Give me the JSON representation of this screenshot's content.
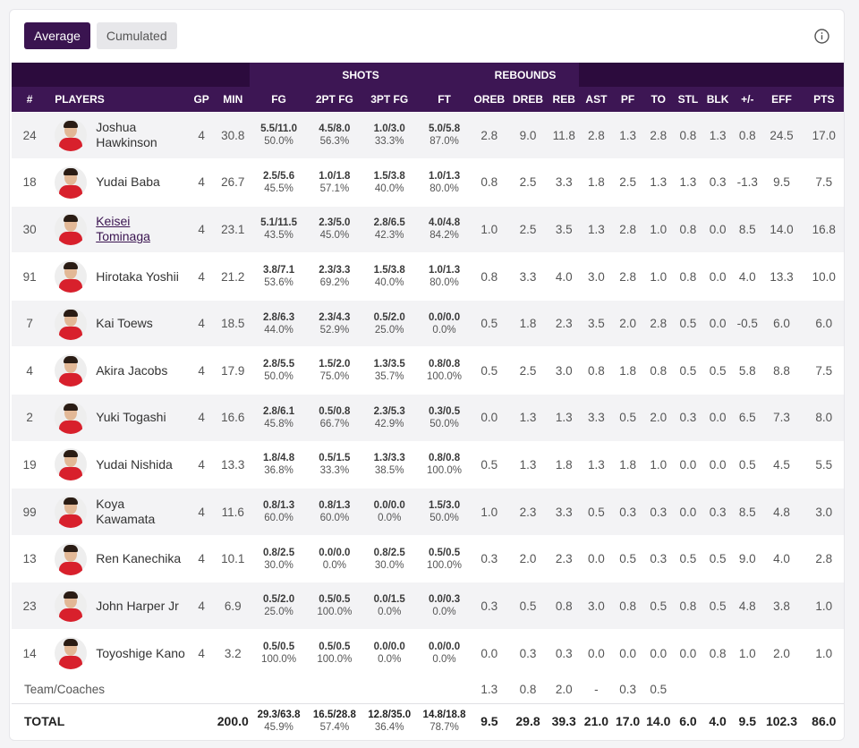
{
  "tabs": [
    {
      "label": "Average",
      "active": true
    },
    {
      "label": "Cumulated",
      "active": false
    }
  ],
  "info_icon": "info-circle-icon",
  "colors": {
    "header_dark": "#2c0b3d",
    "header": "#3d1654",
    "accent": "#3a1450",
    "jersey": "#d8202c"
  },
  "table": {
    "groups": {
      "shots": "SHOTS",
      "rebounds": "REBOUNDS"
    },
    "columns": [
      "#",
      "PLAYERS",
      "GP",
      "MIN",
      "FG",
      "2PT FG",
      "3PT FG",
      "FT",
      "OREB",
      "DREB",
      "REB",
      "AST",
      "PF",
      "TO",
      "STL",
      "BLK",
      "+/-",
      "EFF",
      "PTS"
    ],
    "players": [
      {
        "no": "24",
        "name": "Joshua Hawkinson",
        "gp": "4",
        "min": "30.8",
        "fg": [
          "5.5/11.0",
          "50.0%"
        ],
        "fg2": [
          "4.5/8.0",
          "56.3%"
        ],
        "fg3": [
          "1.0/3.0",
          "33.3%"
        ],
        "ft": [
          "5.0/5.8",
          "87.0%"
        ],
        "oreb": "2.8",
        "dreb": "9.0",
        "reb": "11.8",
        "ast": "2.8",
        "pf": "1.3",
        "to": "2.8",
        "stl": "0.8",
        "blk": "1.3",
        "pm": "0.8",
        "eff": "24.5",
        "pts": "17.0"
      },
      {
        "no": "18",
        "name": "Yudai Baba",
        "gp": "4",
        "min": "26.7",
        "fg": [
          "2.5/5.6",
          "45.5%"
        ],
        "fg2": [
          "1.0/1.8",
          "57.1%"
        ],
        "fg3": [
          "1.5/3.8",
          "40.0%"
        ],
        "ft": [
          "1.0/1.3",
          "80.0%"
        ],
        "oreb": "0.8",
        "dreb": "2.5",
        "reb": "3.3",
        "ast": "1.8",
        "pf": "2.5",
        "to": "1.3",
        "stl": "1.3",
        "blk": "0.3",
        "pm": "-1.3",
        "eff": "9.5",
        "pts": "7.5"
      },
      {
        "no": "30",
        "name": "Keisei Tominaga",
        "link": true,
        "gp": "4",
        "min": "23.1",
        "fg": [
          "5.1/11.5",
          "43.5%"
        ],
        "fg2": [
          "2.3/5.0",
          "45.0%"
        ],
        "fg3": [
          "2.8/6.5",
          "42.3%"
        ],
        "ft": [
          "4.0/4.8",
          "84.2%"
        ],
        "oreb": "1.0",
        "dreb": "2.5",
        "reb": "3.5",
        "ast": "1.3",
        "pf": "2.8",
        "to": "1.0",
        "stl": "0.8",
        "blk": "0.0",
        "pm": "8.5",
        "eff": "14.0",
        "pts": "16.8"
      },
      {
        "no": "91",
        "name": "Hirotaka Yoshii",
        "gp": "4",
        "min": "21.2",
        "fg": [
          "3.8/7.1",
          "53.6%"
        ],
        "fg2": [
          "2.3/3.3",
          "69.2%"
        ],
        "fg3": [
          "1.5/3.8",
          "40.0%"
        ],
        "ft": [
          "1.0/1.3",
          "80.0%"
        ],
        "oreb": "0.8",
        "dreb": "3.3",
        "reb": "4.0",
        "ast": "3.0",
        "pf": "2.8",
        "to": "1.0",
        "stl": "0.8",
        "blk": "0.0",
        "pm": "4.0",
        "eff": "13.3",
        "pts": "10.0"
      },
      {
        "no": "7",
        "name": "Kai Toews",
        "gp": "4",
        "min": "18.5",
        "fg": [
          "2.8/6.3",
          "44.0%"
        ],
        "fg2": [
          "2.3/4.3",
          "52.9%"
        ],
        "fg3": [
          "0.5/2.0",
          "25.0%"
        ],
        "ft": [
          "0.0/0.0",
          "0.0%"
        ],
        "oreb": "0.5",
        "dreb": "1.8",
        "reb": "2.3",
        "ast": "3.5",
        "pf": "2.0",
        "to": "2.8",
        "stl": "0.5",
        "blk": "0.0",
        "pm": "-0.5",
        "eff": "6.0",
        "pts": "6.0"
      },
      {
        "no": "4",
        "name": "Akira Jacobs",
        "gp": "4",
        "min": "17.9",
        "fg": [
          "2.8/5.5",
          "50.0%"
        ],
        "fg2": [
          "1.5/2.0",
          "75.0%"
        ],
        "fg3": [
          "1.3/3.5",
          "35.7%"
        ],
        "ft": [
          "0.8/0.8",
          "100.0%"
        ],
        "oreb": "0.5",
        "dreb": "2.5",
        "reb": "3.0",
        "ast": "0.8",
        "pf": "1.8",
        "to": "0.8",
        "stl": "0.5",
        "blk": "0.5",
        "pm": "5.8",
        "eff": "8.8",
        "pts": "7.5"
      },
      {
        "no": "2",
        "name": "Yuki Togashi",
        "gp": "4",
        "min": "16.6",
        "fg": [
          "2.8/6.1",
          "45.8%"
        ],
        "fg2": [
          "0.5/0.8",
          "66.7%"
        ],
        "fg3": [
          "2.3/5.3",
          "42.9%"
        ],
        "ft": [
          "0.3/0.5",
          "50.0%"
        ],
        "oreb": "0.0",
        "dreb": "1.3",
        "reb": "1.3",
        "ast": "3.3",
        "pf": "0.5",
        "to": "2.0",
        "stl": "0.3",
        "blk": "0.0",
        "pm": "6.5",
        "eff": "7.3",
        "pts": "8.0"
      },
      {
        "no": "19",
        "name": "Yudai Nishida",
        "gp": "4",
        "min": "13.3",
        "fg": [
          "1.8/4.8",
          "36.8%"
        ],
        "fg2": [
          "0.5/1.5",
          "33.3%"
        ],
        "fg3": [
          "1.3/3.3",
          "38.5%"
        ],
        "ft": [
          "0.8/0.8",
          "100.0%"
        ],
        "oreb": "0.5",
        "dreb": "1.3",
        "reb": "1.8",
        "ast": "1.3",
        "pf": "1.8",
        "to": "1.0",
        "stl": "0.0",
        "blk": "0.0",
        "pm": "0.5",
        "eff": "4.5",
        "pts": "5.5"
      },
      {
        "no": "99",
        "name": "Koya Kawamata",
        "gp": "4",
        "min": "11.6",
        "fg": [
          "0.8/1.3",
          "60.0%"
        ],
        "fg2": [
          "0.8/1.3",
          "60.0%"
        ],
        "fg3": [
          "0.0/0.0",
          "0.0%"
        ],
        "ft": [
          "1.5/3.0",
          "50.0%"
        ],
        "oreb": "1.0",
        "dreb": "2.3",
        "reb": "3.3",
        "ast": "0.5",
        "pf": "0.3",
        "to": "0.3",
        "stl": "0.0",
        "blk": "0.3",
        "pm": "8.5",
        "eff": "4.8",
        "pts": "3.0"
      },
      {
        "no": "13",
        "name": "Ren Kanechika",
        "gp": "4",
        "min": "10.1",
        "fg": [
          "0.8/2.5",
          "30.0%"
        ],
        "fg2": [
          "0.0/0.0",
          "0.0%"
        ],
        "fg3": [
          "0.8/2.5",
          "30.0%"
        ],
        "ft": [
          "0.5/0.5",
          "100.0%"
        ],
        "oreb": "0.3",
        "dreb": "2.0",
        "reb": "2.3",
        "ast": "0.0",
        "pf": "0.5",
        "to": "0.3",
        "stl": "0.5",
        "blk": "0.5",
        "pm": "9.0",
        "eff": "4.0",
        "pts": "2.8"
      },
      {
        "no": "23",
        "name": "John Harper Jr",
        "gp": "4",
        "min": "6.9",
        "fg": [
          "0.5/2.0",
          "25.0%"
        ],
        "fg2": [
          "0.5/0.5",
          "100.0%"
        ],
        "fg3": [
          "0.0/1.5",
          "0.0%"
        ],
        "ft": [
          "0.0/0.3",
          "0.0%"
        ],
        "oreb": "0.3",
        "dreb": "0.5",
        "reb": "0.8",
        "ast": "3.0",
        "pf": "0.8",
        "to": "0.5",
        "stl": "0.8",
        "blk": "0.5",
        "pm": "4.8",
        "eff": "3.8",
        "pts": "1.0"
      },
      {
        "no": "14",
        "name": "Toyoshige Kano",
        "gp": "4",
        "min": "3.2",
        "fg": [
          "0.5/0.5",
          "100.0%"
        ],
        "fg2": [
          "0.5/0.5",
          "100.0%"
        ],
        "fg3": [
          "0.0/0.0",
          "0.0%"
        ],
        "ft": [
          "0.0/0.0",
          "0.0%"
        ],
        "oreb": "0.0",
        "dreb": "0.3",
        "reb": "0.3",
        "ast": "0.0",
        "pf": "0.0",
        "to": "0.0",
        "stl": "0.0",
        "blk": "0.8",
        "pm": "1.0",
        "eff": "2.0",
        "pts": "1.0"
      }
    ],
    "team": {
      "label": "Team/Coaches",
      "oreb": "1.3",
      "dreb": "0.8",
      "reb": "2.0",
      "ast": "-",
      "pf": "0.3",
      "to": "0.5"
    },
    "total": {
      "label": "TOTAL",
      "min": "200.0",
      "fg": [
        "29.3/63.8",
        "45.9%"
      ],
      "fg2": [
        "16.5/28.8",
        "57.4%"
      ],
      "fg3": [
        "12.8/35.0",
        "36.4%"
      ],
      "ft": [
        "14.8/18.8",
        "78.7%"
      ],
      "oreb": "9.5",
      "dreb": "29.8",
      "reb": "39.3",
      "ast": "21.0",
      "pf": "17.0",
      "to": "14.0",
      "stl": "6.0",
      "blk": "4.0",
      "pm": "9.5",
      "eff": "102.3",
      "pts": "86.0"
    }
  }
}
